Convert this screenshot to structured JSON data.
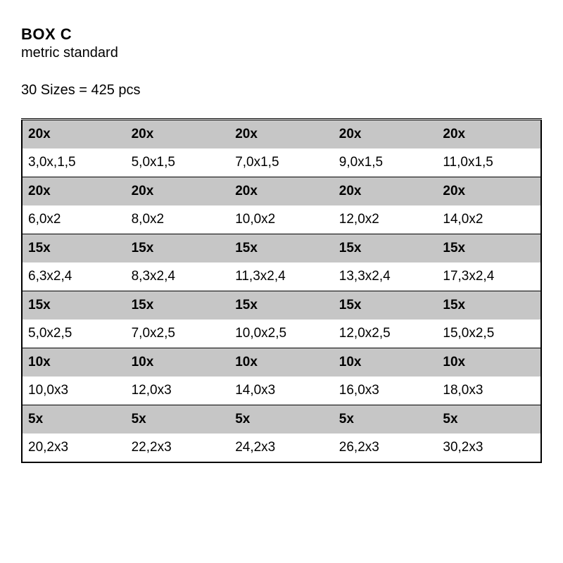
{
  "header": {
    "title": "BOX C",
    "subtitle": "metric standard",
    "summary": "30 Sizes = 425 pcs"
  },
  "table": {
    "columns": 5,
    "font_size_pt": 14,
    "colors": {
      "header_bg": "#c6c6c6",
      "row_bg": "#ffffff",
      "border": "#000000",
      "text": "#000000"
    },
    "groups": [
      {
        "qty": [
          "20x",
          "20x",
          "20x",
          "20x",
          "20x"
        ],
        "sizes": [
          "3,0x,1,5",
          "5,0x1,5",
          "7,0x1,5",
          "9,0x1,5",
          "11,0x1,5"
        ]
      },
      {
        "qty": [
          "20x",
          "20x",
          "20x",
          "20x",
          "20x"
        ],
        "sizes": [
          "6,0x2",
          "8,0x2",
          "10,0x2",
          "12,0x2",
          "14,0x2"
        ]
      },
      {
        "qty": [
          "15x",
          "15x",
          "15x",
          "15x",
          "15x"
        ],
        "sizes": [
          "6,3x2,4",
          "8,3x2,4",
          "11,3x2,4",
          "13,3x2,4",
          "17,3x2,4"
        ]
      },
      {
        "qty": [
          "15x",
          "15x",
          "15x",
          "15x",
          "15x"
        ],
        "sizes": [
          "5,0x2,5",
          "7,0x2,5",
          "10,0x2,5",
          "12,0x2,5",
          "15,0x2,5"
        ]
      },
      {
        "qty": [
          "10x",
          "10x",
          "10x",
          "10x",
          "10x"
        ],
        "sizes": [
          "10,0x3",
          "12,0x3",
          "14,0x3",
          "16,0x3",
          "18,0x3"
        ]
      },
      {
        "qty": [
          "5x",
          "5x",
          "5x",
          "5x",
          "5x"
        ],
        "sizes": [
          "20,2x3",
          "22,2x3",
          "24,2x3",
          "26,2x3",
          "30,2x3"
        ]
      }
    ]
  }
}
